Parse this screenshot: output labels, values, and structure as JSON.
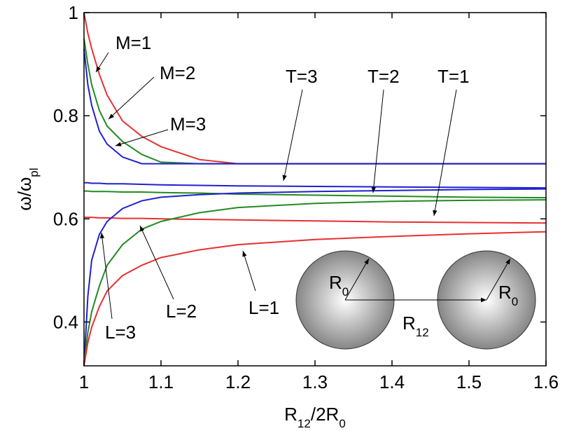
{
  "chart_data": {
    "type": "line",
    "xlabel": [
      {
        "text": "R"
      },
      {
        "text": "12",
        "sub": true
      },
      {
        "text": "/2R"
      },
      {
        "text": "0",
        "sub": true
      }
    ],
    "ylabel": [
      {
        "text": "ω/ω"
      },
      {
        "text": "pl",
        "sub": true
      }
    ],
    "x": [
      1,
      1.005,
      1.01,
      1.02,
      1.03,
      1.05,
      1.075,
      1.1,
      1.15,
      1.2,
      1.3,
      1.4,
      1.5,
      1.6
    ],
    "series": [
      {
        "name": "M=1",
        "color": "#e83030",
        "values": [
          1,
          0.96,
          0.93,
          0.88,
          0.84,
          0.79,
          0.76,
          0.74,
          0.715,
          0.707,
          0.707,
          0.707,
          0.707,
          0.707
        ]
      },
      {
        "name": "M=2",
        "color": "#228b22",
        "values": [
          0.95,
          0.9,
          0.86,
          0.81,
          0.78,
          0.75,
          0.725,
          0.71,
          0.707,
          0.707,
          0.707,
          0.707,
          0.707,
          0.707
        ]
      },
      {
        "name": "M=3",
        "color": "#2020d0",
        "values": [
          0.93,
          0.86,
          0.82,
          0.77,
          0.745,
          0.72,
          0.707,
          0.707,
          0.707,
          0.707,
          0.707,
          0.707,
          0.707,
          0.707
        ]
      },
      {
        "name": "T=3",
        "color": "#2020d0",
        "values": [
          0.67,
          0.67,
          0.669,
          0.669,
          0.668,
          0.668,
          0.667,
          0.666,
          0.665,
          0.664,
          0.663,
          0.662,
          0.661,
          0.66
        ]
      },
      {
        "name": "T=2",
        "color": "#228b22",
        "values": [
          0.654,
          0.654,
          0.653,
          0.653,
          0.653,
          0.652,
          0.652,
          0.651,
          0.65,
          0.648,
          0.646,
          0.644,
          0.642,
          0.641
        ]
      },
      {
        "name": "T=1",
        "color": "#e83030",
        "values": [
          0.603,
          0.603,
          0.603,
          0.602,
          0.602,
          0.601,
          0.601,
          0.6,
          0.599,
          0.598,
          0.596,
          0.594,
          0.593,
          0.592
        ]
      },
      {
        "name": "L=3",
        "color": "#2020d0",
        "values": [
          0.315,
          0.45,
          0.52,
          0.57,
          0.595,
          0.62,
          0.635,
          0.642,
          0.647,
          0.65,
          0.653,
          0.655,
          0.657,
          0.658
        ]
      },
      {
        "name": "L=2",
        "color": "#228b22",
        "values": [
          0.315,
          0.38,
          0.42,
          0.47,
          0.51,
          0.55,
          0.58,
          0.595,
          0.612,
          0.622,
          0.63,
          0.634,
          0.636,
          0.637
        ]
      },
      {
        "name": "L=1",
        "color": "#e83030",
        "values": [
          0.315,
          0.36,
          0.39,
          0.43,
          0.46,
          0.49,
          0.51,
          0.525,
          0.54,
          0.55,
          0.56,
          0.566,
          0.571,
          0.575
        ]
      }
    ],
    "xlim": [
      1,
      1.6
    ],
    "xticks": [
      1,
      1.1,
      1.2,
      1.3,
      1.4,
      1.5,
      1.6
    ],
    "ylim": [
      0.315,
      1
    ],
    "yticks": [
      0.4,
      0.6,
      0.8,
      1
    ],
    "inset": {
      "left_radius": [
        {
          "text": "R"
        },
        {
          "text": "0",
          "sub": true
        }
      ],
      "right_radius": [
        {
          "text": "R"
        },
        {
          "text": "0",
          "sub": true
        }
      ],
      "separation": [
        {
          "text": "R"
        },
        {
          "text": "12",
          "sub": true
        }
      ]
    }
  }
}
